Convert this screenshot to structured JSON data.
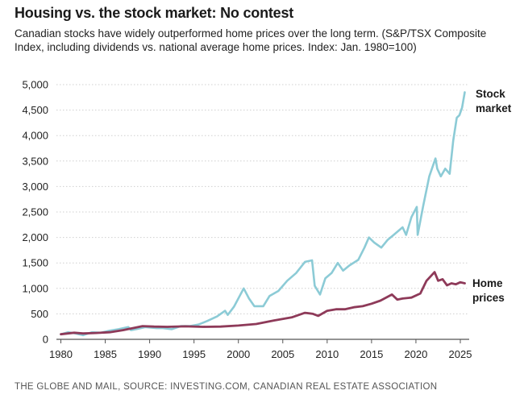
{
  "header": {
    "title": "Housing vs. the stock market: No contest",
    "subtitle": "Canadian stocks have widely outperformed home prices over the long term. (S&P/TSX Composite Index, including dividends vs. national average home prices. Index: Jan. 1980=100)"
  },
  "footer": {
    "source": "THE GLOBE AND MAIL, SOURCE: INVESTING.COM, CANADIAN REAL ESTATE ASSOCIATION"
  },
  "chart_data": {
    "type": "line",
    "title": "Housing vs. the stock market: No contest",
    "xlabel": "",
    "ylabel": "",
    "xlim": [
      1979.5,
      2026
    ],
    "ylim": [
      0,
      5000
    ],
    "grid": true,
    "x_ticks": [
      {
        "value": 1980,
        "label": "1980"
      },
      {
        "value": 1985,
        "label": "1985"
      },
      {
        "value": 1990,
        "label": "1990"
      },
      {
        "value": 1995,
        "label": "1995"
      },
      {
        "value": 2000,
        "label": "2000"
      },
      {
        "value": 2005,
        "label": "2005"
      },
      {
        "value": 2010,
        "label": "2010"
      },
      {
        "value": 2015,
        "label": "2015"
      },
      {
        "value": 2020,
        "label": "2020"
      },
      {
        "value": 2025,
        "label": "2025"
      }
    ],
    "y_ticks": [
      {
        "value": 0,
        "label": "0"
      },
      {
        "value": 500,
        "label": "500"
      },
      {
        "value": 1000,
        "label": "1,000"
      },
      {
        "value": 1500,
        "label": "1,500"
      },
      {
        "value": 2000,
        "label": "2,000"
      },
      {
        "value": 2500,
        "label": "2,500"
      },
      {
        "value": 3000,
        "label": "3,000"
      },
      {
        "value": 3500,
        "label": "3,500"
      },
      {
        "value": 4000,
        "label": "4,000"
      },
      {
        "value": 4500,
        "label": "4,500"
      },
      {
        "value": 5000,
        "label": "5,000"
      }
    ],
    "series": [
      {
        "name": "Stock market",
        "label_lines": [
          "Stock",
          "market"
        ],
        "color": "#8ccbd6",
        "x": [
          1980,
          1980.8,
          1981.5,
          1982.5,
          1983.5,
          1984.5,
          1985.5,
          1986.5,
          1987.6,
          1987.9,
          1988.5,
          1989.5,
          1990.8,
          1991.5,
          1992.5,
          1993.5,
          1994.5,
          1995.5,
          1996.5,
          1997.6,
          1998.5,
          1998.8,
          1999.5,
          2000.6,
          2001.2,
          2001.8,
          2002.8,
          2003.5,
          2004.5,
          2005.5,
          2006.5,
          2007.5,
          2008.3,
          2008.6,
          2009.2,
          2009.8,
          2010.5,
          2011.2,
          2011.8,
          2012.5,
          2013.5,
          2014.2,
          2014.7,
          2015.3,
          2016.1,
          2016.8,
          2017.5,
          2018.5,
          2018.9,
          2019.5,
          2020.1,
          2020.2,
          2020.8,
          2021.5,
          2022.2,
          2022.4,
          2022.8,
          2023.3,
          2023.8,
          2024.2,
          2024.6,
          2024.9,
          2025.2,
          2025.5
        ],
        "values": [
          100,
          140,
          120,
          80,
          140,
          130,
          170,
          200,
          240,
          180,
          200,
          240,
          220,
          220,
          200,
          260,
          260,
          290,
          360,
          450,
          560,
          480,
          640,
          1000,
          800,
          650,
          650,
          850,
          950,
          1150,
          1300,
          1520,
          1550,
          1050,
          880,
          1200,
          1300,
          1500,
          1350,
          1450,
          1560,
          1800,
          2000,
          1900,
          1800,
          1950,
          2050,
          2200,
          2050,
          2400,
          2600,
          2050,
          2600,
          3200,
          3550,
          3350,
          3200,
          3350,
          3250,
          3900,
          4350,
          4400,
          4550,
          4850
        ]
      },
      {
        "name": "Home prices",
        "label_lines": [
          "Home",
          "prices"
        ],
        "color": "#8e3a59",
        "x": [
          1980,
          1981.5,
          1982.5,
          1984,
          1985.5,
          1987,
          1989.2,
          1990.5,
          1992,
          1994,
          1996,
          1998,
          2000,
          2002,
          2004,
          2006,
          2007.5,
          2008.4,
          2009,
          2010,
          2011,
          2012,
          2013,
          2014,
          2015,
          2016,
          2017.3,
          2017.9,
          2018.5,
          2019.5,
          2020.5,
          2021.2,
          2022.1,
          2022.5,
          2023,
          2023.5,
          2024,
          2024.5,
          2025,
          2025.5
        ],
        "values": [
          100,
          130,
          115,
          125,
          140,
          180,
          260,
          250,
          245,
          255,
          245,
          250,
          270,
          300,
          370,
          430,
          520,
          500,
          460,
          560,
          590,
          590,
          630,
          650,
          700,
          760,
          880,
          780,
          800,
          820,
          900,
          1150,
          1320,
          1150,
          1180,
          1060,
          1100,
          1080,
          1120,
          1100
        ]
      }
    ]
  }
}
